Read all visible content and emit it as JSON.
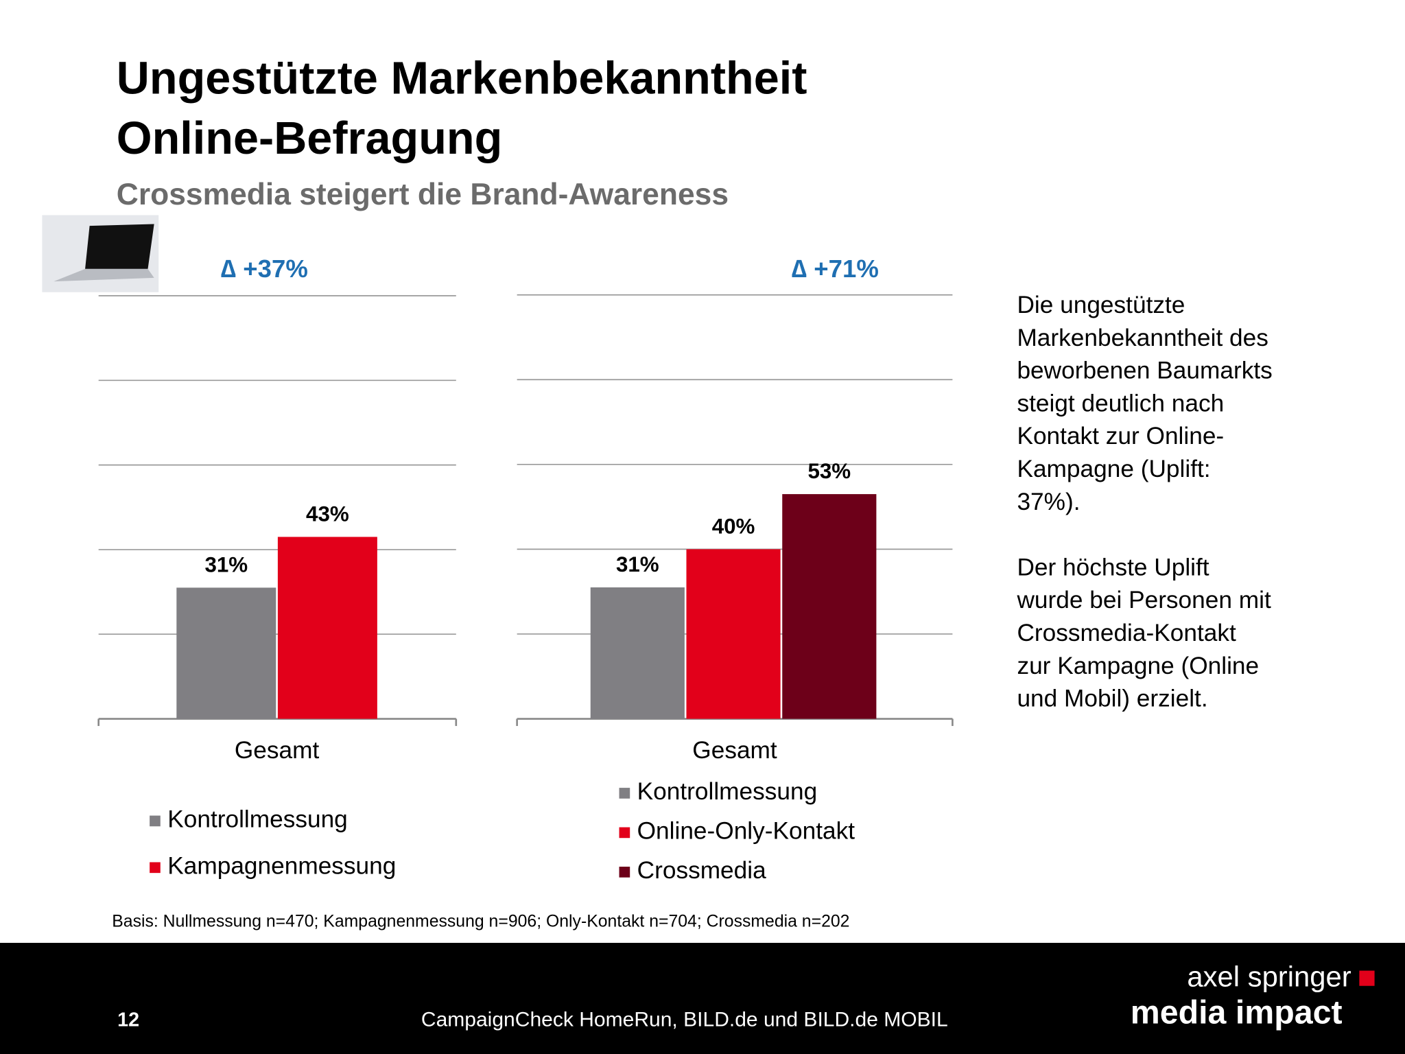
{
  "header": {
    "title_lines": [
      "Ungestützte Markenbekanntheit",
      "Online-Befragung"
    ],
    "subtitle": "Crossmedia steigert die Brand-Awareness"
  },
  "chart_data": [
    {
      "type": "bar",
      "annotation": "∆ +37%",
      "categories": [
        "Gesamt"
      ],
      "series": [
        {
          "name": "Kontrollmessung",
          "color": "#807f83",
          "values": [
            31
          ],
          "value_labels": [
            "31%"
          ]
        },
        {
          "name": "Kampagnenmessung",
          "color": "#e2001a",
          "values": [
            43
          ],
          "value_labels": [
            "43%"
          ]
        }
      ],
      "ylim": [
        0,
        100
      ],
      "yticks": [
        0,
        20,
        40,
        60,
        80,
        100
      ],
      "grid": true
    },
    {
      "type": "bar",
      "annotation": "∆ +71%",
      "categories": [
        "Gesamt"
      ],
      "series": [
        {
          "name": "Kontrollmessung",
          "color": "#807f83",
          "values": [
            31
          ],
          "value_labels": [
            "31%"
          ]
        },
        {
          "name": "Online-Only-Kontakt",
          "color": "#e2001a",
          "values": [
            40
          ],
          "value_labels": [
            "40%"
          ]
        },
        {
          "name": "Crossmedia",
          "color": "#6d0019",
          "values": [
            53
          ],
          "value_labels": [
            "53%"
          ]
        }
      ],
      "ylim": [
        0,
        100
      ],
      "yticks": [
        0,
        20,
        40,
        60,
        80,
        100
      ],
      "grid": true
    }
  ],
  "sidebar": {
    "paragraphs": [
      [
        "Die ungestützte",
        "Markenbekanntheit des",
        "beworbenen Baumarkts",
        "steigt deutlich nach",
        "Kontakt zur Online-",
        "Kampagne (Uplift:",
        "37%)."
      ],
      [
        "Der höchste Uplift",
        "wurde bei Personen mit",
        "Crossmedia-Kontakt",
        "zur Kampagne (Online",
        "und Mobil) erzielt."
      ]
    ]
  },
  "footnote": "Basis: Nullmessung n=470; Kampagnenmessung n=906; Only-Kontakt n=704; Crossmedia n=202",
  "footer": {
    "page_number": "12",
    "source": "CampaignCheck HomeRun, BILD.de und BILD.de MOBIL",
    "logo_line1": "axel springer",
    "logo_line2": "media impact"
  }
}
